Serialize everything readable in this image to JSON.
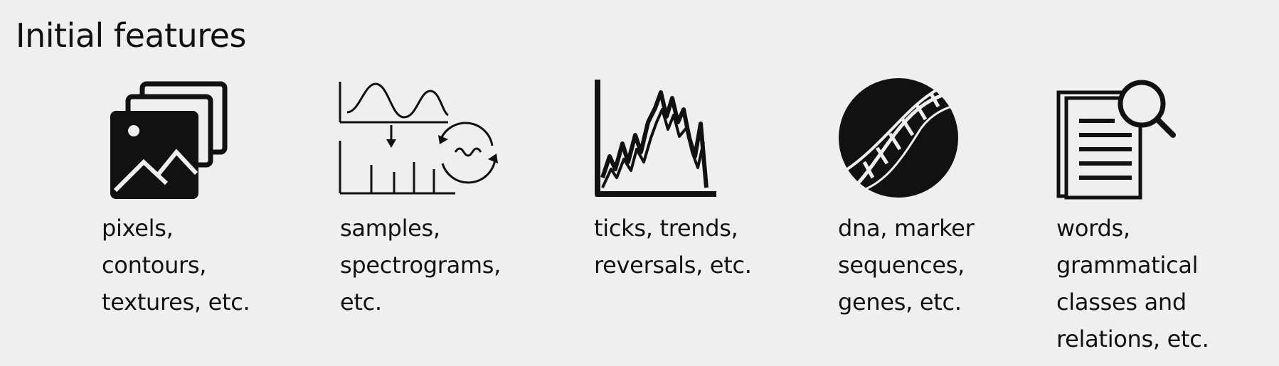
{
  "title": "Initial features",
  "features": [
    {
      "icon": "images-stack-icon",
      "caption": "pixels,\ncontours,\ntextures, etc."
    },
    {
      "icon": "audio-signal-icon",
      "caption": "samples,\nspectrograms,\netc."
    },
    {
      "icon": "stock-chart-icon",
      "caption": "ticks, trends,\nreversals, etc."
    },
    {
      "icon": "dna-helix-icon",
      "caption": "dna, marker\nsequences,\ngenes, etc."
    },
    {
      "icon": "document-search-icon",
      "caption": "words,\ngrammatical\nclasses and\nrelations, etc."
    }
  ]
}
